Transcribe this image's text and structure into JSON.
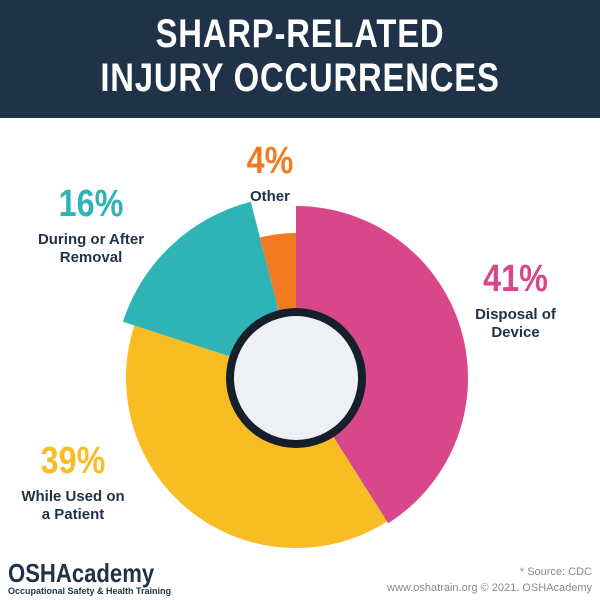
{
  "chart_data": {
    "type": "pie",
    "title_lines": [
      "SHARP-RELATED",
      "INJURY OCCURRENCES"
    ],
    "categories": [
      "Disposal of Device",
      "While Used on a Patient",
      "During or After Removal",
      "Other"
    ],
    "values": [
      41,
      39,
      16,
      4
    ],
    "value_labels": [
      "41%",
      "39%",
      "16%",
      "4%"
    ],
    "colors": [
      "#d9478b",
      "#f7bd22",
      "#2fb4b6",
      "#f47a22"
    ]
  },
  "footer": {
    "brand": "OSHAcademy",
    "tagline": "Occupational Safety & Health Training",
    "source": "* Source: CDC",
    "credit": "www.oshatrain.org © 2021. OSHAcademy"
  }
}
